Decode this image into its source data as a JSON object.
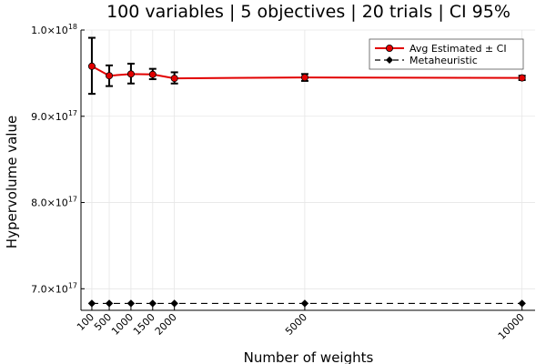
{
  "chart_data": {
    "type": "line",
    "title": "100 variables | 5 objectives | 20 trials | CI 95%",
    "xlabel": "Number of weights",
    "ylabel": "Hypervolume value",
    "x": [
      100,
      500,
      1000,
      1500,
      2000,
      5000,
      10000
    ],
    "xticks": [
      "100",
      "500",
      "1000",
      "1500",
      "2000",
      "5000",
      "10000"
    ],
    "xlim": [
      -150,
      10300
    ],
    "ylim": [
      6.75e+17,
      1e+18
    ],
    "yticks": [
      {
        "value": 7e+17,
        "mantissa": "7.0×10",
        "exponent": "17"
      },
      {
        "value": 8e+17,
        "mantissa": "8.0×10",
        "exponent": "17"
      },
      {
        "value": 9e+17,
        "mantissa": "9.0×10",
        "exponent": "17"
      },
      {
        "value": 1e+18,
        "mantissa": "1.0×10",
        "exponent": "18"
      }
    ],
    "grid": true,
    "legend_position": "top-right",
    "series": [
      {
        "name": "Avg Estimated ± CI",
        "color": "#e20000",
        "marker": "circle",
        "values": [
          9.58e+17,
          9.47e+17,
          9.49e+17,
          9.485e+17,
          9.44e+17,
          9.45e+17,
          9.445e+17
        ],
        "ci_low": [
          9.26e+17,
          9.35e+17,
          9.38e+17,
          9.43e+17,
          9.38e+17,
          9.41e+17,
          9.42e+17
        ],
        "ci_high": [
          9.91e+17,
          9.59e+17,
          9.61e+17,
          9.55e+17,
          9.51e+17,
          9.49e+17,
          9.47e+17
        ]
      },
      {
        "name": "Metaheuristic",
        "color": "#000000",
        "marker": "diamond",
        "dashed": true,
        "values": [
          6.83e+17,
          6.83e+17,
          6.83e+17,
          6.83e+17,
          6.83e+17,
          6.83e+17,
          6.83e+17
        ]
      }
    ]
  }
}
